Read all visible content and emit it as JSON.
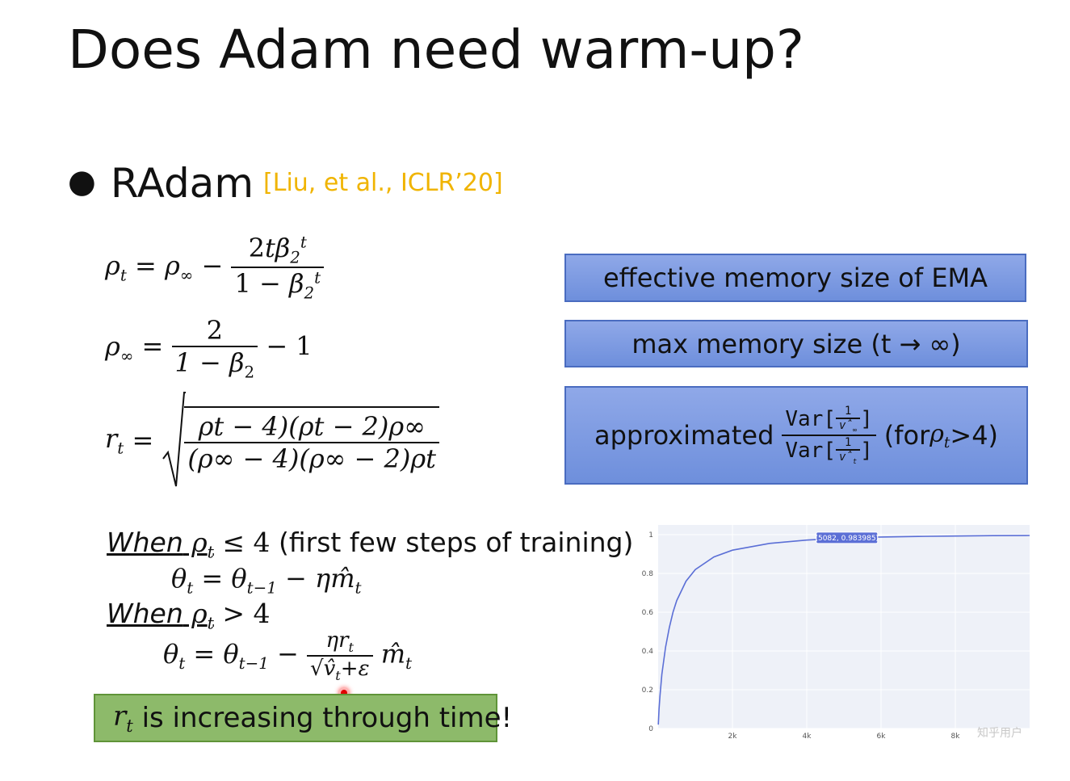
{
  "slide": {
    "title": "Does Adam need warm-up?",
    "bullet_label": "RAdam",
    "citation": "[Liu, et al., ICLR’20]"
  },
  "formulas": {
    "rho_inf_symbol": "ρ∞",
    "eq_minus_one": "− 1",
    "two": "2",
    "one_minus_beta2": "1 − β",
    "rt_label": "r",
    "rt_num": "ρt − 4)(ρt − 2)ρ∞",
    "rt_den": "(ρ∞ − 4)(ρ∞ − 2)ρt"
  },
  "annotations": {
    "box1": "effective memory size of EMA",
    "box2": "max memory size (t → ∞)",
    "box3_prefix": "approximated",
    "box3_suffix_open": "(for ",
    "box3_suffix_close": ">4)"
  },
  "rules": {
    "when1": "When",
    "when1_cond": "≤ 4",
    "when1_note": "(first few steps of training)",
    "when2": "When",
    "when2_cond": "> 4",
    "callout": "is increasing through time!"
  },
  "chart_data": {
    "type": "line",
    "x_tick_labels": [
      "2k",
      "4k",
      "6k",
      "8k"
    ],
    "y_tick_labels": [
      "0",
      "0.2",
      "0.4",
      "0.6",
      "0.8",
      "1"
    ],
    "xlim": [
      0,
      10000
    ],
    "ylim": [
      0,
      1
    ],
    "hover_label": "(5082, 0.983985)",
    "series": [
      {
        "x": [
          5,
          25,
          50,
          100,
          200,
          300,
          400,
          500,
          750,
          1000,
          1500,
          2000,
          3000,
          4000,
          5082,
          6000,
          7000,
          8000,
          9000,
          10000
        ],
        "y": [
          0.02,
          0.1,
          0.17,
          0.28,
          0.42,
          0.52,
          0.6,
          0.66,
          0.76,
          0.82,
          0.885,
          0.92,
          0.955,
          0.972,
          0.984,
          0.988,
          0.991,
          0.993,
          0.995,
          0.996
        ]
      }
    ],
    "line_color": "#5b6fd6",
    "grid": true
  },
  "watermark": "知乎用户"
}
